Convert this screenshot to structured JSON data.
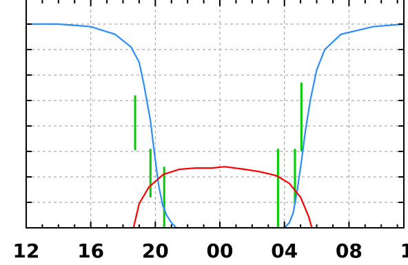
{
  "chart_data": {
    "type": "line",
    "title": "",
    "xlabel": "",
    "ylabel": "",
    "x_tick_labels": [
      "12",
      "16",
      "20",
      "00",
      "04",
      "08",
      "12"
    ],
    "x_tick_hours": [
      0,
      4,
      8,
      12,
      16,
      20,
      24
    ],
    "xlim": [
      0,
      23.4
    ],
    "ylim": [
      0,
      9
    ],
    "grid": true,
    "legend": "none",
    "series": [
      {
        "color": "#2a8cff",
        "x": [
          0,
          2.0,
          4.0,
          5.5,
          6.5,
          7.0,
          7.3,
          7.7,
          7.95,
          8.2,
          8.45,
          8.7,
          9.0,
          9.3,
          16.0,
          16.3,
          16.55,
          16.8,
          17.05,
          17.3,
          17.6,
          18.0,
          18.5,
          19.5,
          21.5,
          23.4
        ],
        "y": [
          8.0,
          8.0,
          7.9,
          7.6,
          7.1,
          6.5,
          5.6,
          4.2,
          2.9,
          1.7,
          0.9,
          0.5,
          0.2,
          0.0,
          0.0,
          0.2,
          0.6,
          1.5,
          2.6,
          3.8,
          5.0,
          6.2,
          7.0,
          7.6,
          7.9,
          8.0
        ]
      },
      {
        "color": "#ff0000",
        "x": [
          6.65,
          7.0,
          7.6,
          8.5,
          9.5,
          10.5,
          11.5,
          12.3,
          13.5,
          14.5,
          15.5,
          16.3,
          17.0,
          17.5,
          17.7
        ],
        "y": [
          0.0,
          0.95,
          1.6,
          2.1,
          2.3,
          2.35,
          2.35,
          2.4,
          2.3,
          2.2,
          2.05,
          1.75,
          1.2,
          0.45,
          0.0
        ]
      }
    ],
    "bars": {
      "color": "#00cc00",
      "x": [
        6.75,
        7.7,
        8.55,
        15.6,
        16.65,
        17.05
      ],
      "top": [
        5.2,
        3.1,
        2.4,
        3.1,
        3.1,
        5.7
      ],
      "bottom": [
        3.05,
        1.2,
        0.0,
        0.0,
        0.95,
        3.0
      ]
    }
  }
}
